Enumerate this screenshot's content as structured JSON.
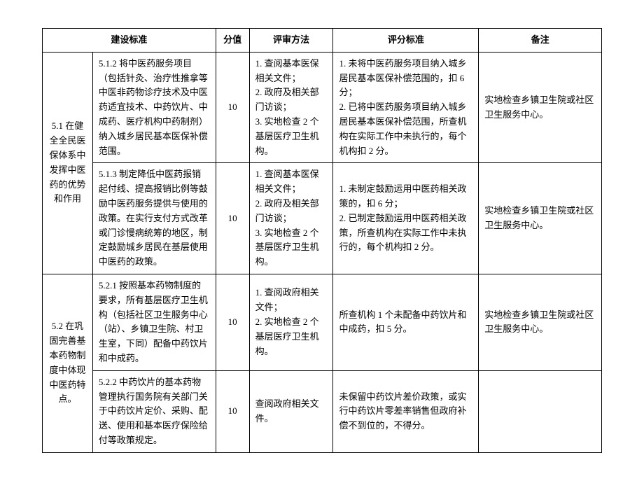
{
  "headers": {
    "standard": "建设标准",
    "score": "分值",
    "method": "评审方法",
    "criteria": "评分标准",
    "note": "备注"
  },
  "groups": [
    {
      "category": "5.1 在健全全民医保体系中发挥中医药的优势和作用",
      "rows": [
        {
          "standard": "5.1.2 将中医药服务项目（包括针灸、治疗性推拿等中医非药物诊疗技术及中医药适宜技术、中药饮片、中成药、医疗机构中药制剂）纳入城乡居民基本医保补偿范围。",
          "score": "10",
          "method": "1. 查阅基本医保相关文件；\n2. 政府及相关部门访谈；\n3. 实地检查 2 个基层医疗卫生机构。",
          "criteria": "1. 未将中医药服务项目纳入城乡居民基本医保补偿范围的，扣 6 分；\n2. 已将中医药服务项目纳入城乡居民基本医保补偿范围，所查机构在实际工作中未执行的，每个机构扣 2 分。",
          "note": "实地检查乡镇卫生院或社区卫生服务中心。"
        },
        {
          "standard": "5.1.3 制定降低中医药报销起付线、提高报销比例等鼓励中医药服务提供与使用的政策。在实行支付方式改革或门诊慢病统筹的地区，制定鼓励城乡居民在基层使用中医药的政策。",
          "score": "10",
          "method": "1. 查阅基本医保相关文件；\n2. 政府及相关部门访谈；\n3. 实地检查 2 个基层医疗卫生机构。",
          "criteria": "1. 未制定鼓励运用中医药相关政策的，扣 6 分；\n2. 已制定鼓励运用中医药相关政策，所查机构在实际工作中未执行的，每个机构扣 2 分。",
          "note": "实地检查乡镇卫生院或社区卫生服务中心。"
        }
      ]
    },
    {
      "category": "5.2 在巩固完善基本药物制度中体现中医药特点。",
      "rows": [
        {
          "standard": "5.2.1 按照基本药物制度的要求，所有基层医疗卫生机构（包括社区卫生服务中心（站）、乡镇卫生院、村卫生室，下同）配备中药饮片和中成药。",
          "score": "10",
          "method": "1. 查阅政府相关文件；\n2. 实地检查 2 个基层医疗卫生机构。",
          "criteria": "所查机构 1 个未配备中药饮片和中成药，扣 5 分。",
          "note": "实地检查乡镇卫生院或社区卫生服务中心。"
        },
        {
          "standard": "5.2.2 中药饮片的基本药物管理执行国务院有关部门关于中药饮片定价、采购、配送、使用和基本医疗保险给付等政策规定。",
          "score": "10",
          "method": "查阅政府相关文件。",
          "criteria": "未保留中药饮片差价政策，或实行中药饮片零差率销售但政府补偿不到位的，不得分。",
          "note": ""
        }
      ]
    }
  ]
}
